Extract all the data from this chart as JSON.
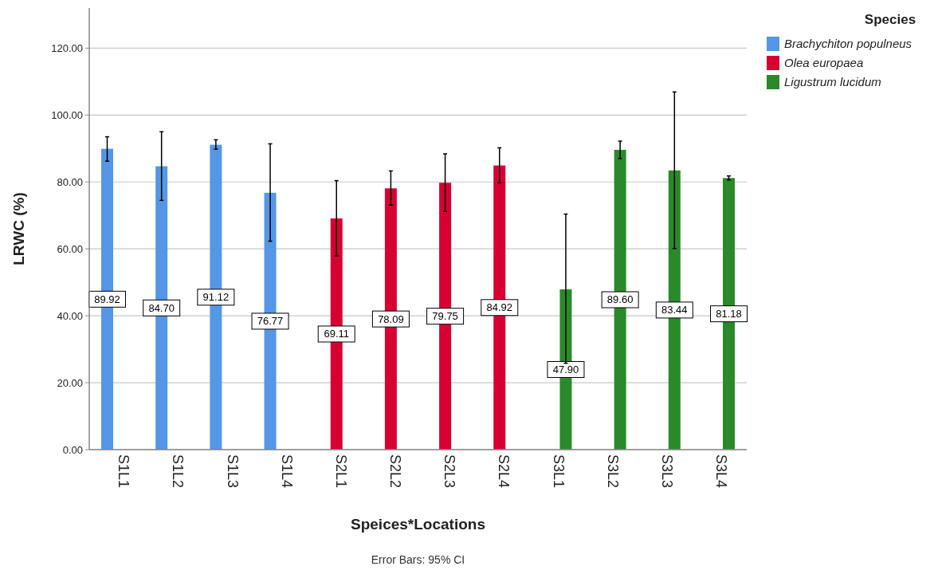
{
  "chart_data": {
    "type": "bar",
    "xlabel": "Speices*Locations",
    "ylabel": "LRWC (%)",
    "legend_title": "Species",
    "legend": "top right",
    "grid": "y",
    "categories": [
      "S1L1",
      "S1L2",
      "S1L3",
      "S1L4",
      "S2L1",
      "S2L2",
      "S2L3",
      "S2L4",
      "S3L1",
      "S3L2",
      "S3L3",
      "S3L4"
    ],
    "ylim": [
      0,
      132
    ],
    "yticks": [
      {
        "value": 0,
        "label": "0.00"
      },
      {
        "value": 20,
        "label": "20.00"
      },
      {
        "value": 40,
        "label": "40.00"
      },
      {
        "value": 60,
        "label": "60.00"
      },
      {
        "value": 80,
        "label": "80.00"
      },
      {
        "value": 100,
        "label": "100.00"
      },
      {
        "value": 120,
        "label": "120.00"
      }
    ],
    "series": [
      {
        "name": "Brachychiton populneus",
        "color": "#5596e6",
        "values": [
          89.92,
          84.7,
          91.12,
          76.77,
          null,
          null,
          null,
          null,
          null,
          null,
          null,
          null
        ],
        "value_labels": [
          "89.92",
          "84.70",
          "91.12",
          "76.77",
          null,
          null,
          null,
          null,
          null,
          null,
          null,
          null
        ],
        "errors": [
          [
            86.2,
            93.5
          ],
          [
            74.5,
            95.0
          ],
          [
            89.8,
            92.6
          ],
          [
            62.3,
            91.4
          ],
          null,
          null,
          null,
          null,
          null,
          null,
          null,
          null
        ]
      },
      {
        "name": "Olea europaea",
        "color": "#d70033",
        "values": [
          null,
          null,
          null,
          null,
          69.11,
          78.09,
          79.75,
          84.92,
          null,
          null,
          null,
          null
        ],
        "value_labels": [
          null,
          null,
          null,
          null,
          "69.11",
          "78.09",
          "79.75",
          "84.92",
          null,
          null,
          null,
          null
        ],
        "errors": [
          null,
          null,
          null,
          null,
          [
            57.9,
            80.4
          ],
          [
            73.1,
            83.3
          ],
          [
            71.2,
            88.4
          ],
          [
            79.7,
            90.2
          ],
          null,
          null,
          null,
          null
        ]
      },
      {
        "name": "Ligustrum lucidum",
        "color": "#2a8a2a",
        "values": [
          null,
          null,
          null,
          null,
          null,
          null,
          null,
          null,
          47.9,
          89.6,
          83.44,
          81.18
        ],
        "value_labels": [
          null,
          null,
          null,
          null,
          null,
          null,
          null,
          null,
          "47.90",
          "89.60",
          "83.44",
          "81.18"
        ],
        "errors": [
          null,
          null,
          null,
          null,
          null,
          null,
          null,
          null,
          [
            25.8,
            70.4
          ],
          [
            87.0,
            92.2
          ],
          [
            60.1,
            106.9
          ],
          [
            80.6,
            81.8
          ]
        ]
      }
    ],
    "annotations": [
      "Error Bars: 95% CI"
    ]
  }
}
